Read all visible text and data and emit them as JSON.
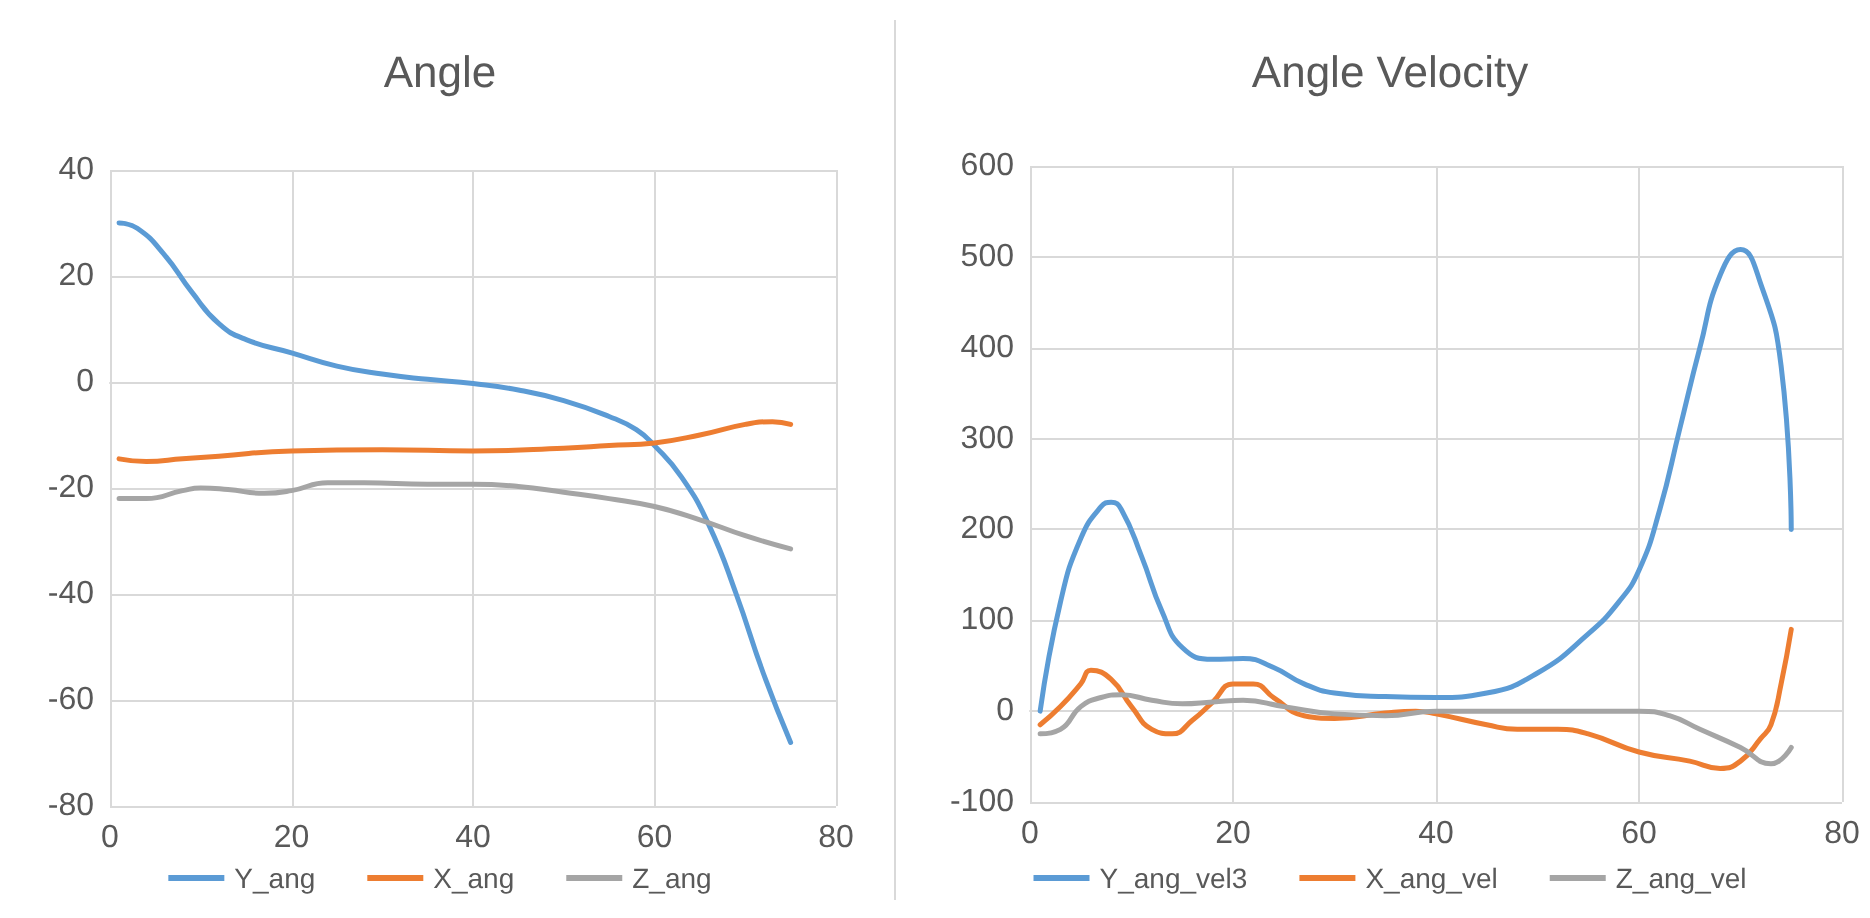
{
  "chart_data": [
    {
      "type": "line",
      "title": "Angle",
      "xlim": [
        0,
        80
      ],
      "xticks": [
        0,
        20,
        40,
        60,
        80
      ],
      "ylim": [
        -80,
        40
      ],
      "yticks": [
        -80,
        -60,
        -40,
        -20,
        0,
        20,
        40
      ],
      "grid": true,
      "legend": "bottom",
      "marker": "none",
      "line_style": "solid",
      "series": [
        {
          "name": "Y_ang",
          "color": "#5b9bd5",
          "x": [
            1,
            3,
            6,
            9,
            12,
            15,
            20,
            25,
            30,
            35,
            40,
            45,
            50,
            55,
            58,
            60,
            63,
            66,
            69,
            72,
            75
          ],
          "values": [
            30,
            29,
            24,
            17,
            11,
            8,
            5.5,
            3,
            1.5,
            0.5,
            -0.3,
            -1.5,
            -3.5,
            -6.5,
            -9,
            -12,
            -18,
            -27,
            -40,
            -55,
            -68
          ]
        },
        {
          "name": "X_ang",
          "color": "#ed7d31",
          "x": [
            1,
            4,
            8,
            12,
            20,
            30,
            40,
            50,
            55,
            60,
            65,
            70,
            73,
            75
          ],
          "values": [
            -14.5,
            -15,
            -14.5,
            -14,
            -13,
            -12.8,
            -13,
            -12.5,
            -12,
            -11.5,
            -10,
            -8,
            -7.5,
            -8
          ]
        },
        {
          "name": "Z_ang",
          "color": "#a5a5a5",
          "x": [
            1,
            4,
            8,
            10,
            13,
            17,
            20,
            24,
            28,
            35,
            40,
            45,
            50,
            55,
            60,
            65,
            70,
            75
          ],
          "values": [
            -22,
            -22,
            -20.5,
            -20,
            -20.3,
            -21,
            -20.5,
            -19,
            -19,
            -19.3,
            -19.3,
            -19.7,
            -20.8,
            -22,
            -23.5,
            -26,
            -29,
            -31.5
          ]
        }
      ]
    },
    {
      "type": "line",
      "title": "Angle Velocity",
      "xlim": [
        0,
        80
      ],
      "xticks": [
        0,
        20,
        40,
        60,
        80
      ],
      "ylim": [
        -100,
        600
      ],
      "yticks": [
        -100,
        0,
        100,
        200,
        300,
        400,
        500,
        600
      ],
      "grid": true,
      "legend": "bottom",
      "marker": "none",
      "line_style": "solid",
      "series": [
        {
          "name": "Y_ang_vel3",
          "color": "#5b9bd5",
          "x": [
            1,
            3,
            5,
            7,
            8,
            9,
            11,
            13,
            15,
            18,
            21,
            24,
            27,
            30,
            35,
            40,
            45,
            50,
            55,
            58,
            60,
            62,
            64,
            66,
            68,
            70,
            72,
            74,
            75
          ],
          "values": [
            0,
            120,
            190,
            225,
            230,
            222,
            170,
            110,
            70,
            57,
            58,
            48,
            30,
            20,
            16,
            15,
            20,
            42,
            85,
            120,
            155,
            220,
            310,
            400,
            480,
            508,
            470,
            380,
            200
          ]
        },
        {
          "name": "X_ang_vel",
          "color": "#ed7d31",
          "x": [
            1,
            3,
            5,
            6,
            8,
            10,
            12,
            14,
            16,
            18,
            20,
            22,
            24,
            27,
            30,
            35,
            38,
            40,
            45,
            48,
            52,
            55,
            60,
            65,
            68,
            70,
            72,
            73,
            74,
            75
          ],
          "values": [
            -15,
            5,
            30,
            45,
            35,
            5,
            -20,
            -25,
            -10,
            10,
            30,
            30,
            15,
            -5,
            -8,
            -2,
            0,
            -3,
            -15,
            -20,
            -20,
            -25,
            -45,
            -55,
            -63,
            -55,
            -30,
            -15,
            30,
            90
          ]
        },
        {
          "name": "Z_ang_vel",
          "color": "#a5a5a5",
          "x": [
            1,
            3,
            5,
            7,
            9,
            12,
            15,
            18,
            21,
            25,
            30,
            35,
            40,
            50,
            60,
            63,
            66,
            70,
            73,
            75
          ],
          "values": [
            -25,
            -20,
            5,
            15,
            18,
            12,
            8,
            10,
            12,
            5,
            -3,
            -5,
            0,
            0,
            0,
            -5,
            -20,
            -40,
            -58,
            -40
          ]
        }
      ]
    }
  ]
}
